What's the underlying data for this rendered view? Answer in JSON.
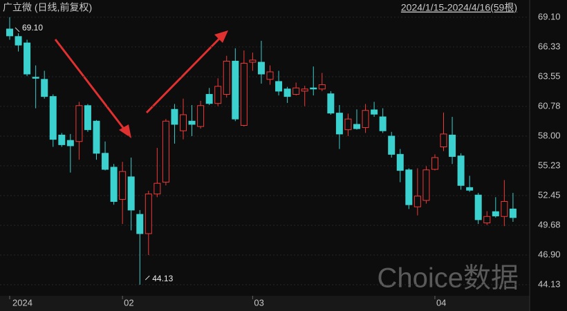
{
  "chart_data": {
    "type": "candlestick",
    "title": "广立微 (日线,前复权)",
    "range_label": "2024/1/15-2024/4/16(59根)",
    "watermark": "Choice数据",
    "categories": [
      "2024",
      null,
      null,
      null,
      null,
      null,
      null,
      null,
      null,
      null,
      null,
      null,
      null,
      "02",
      null,
      null,
      null,
      null,
      null,
      null,
      null,
      null,
      null,
      null,
      null,
      null,
      null,
      null,
      "03",
      null,
      null,
      null,
      null,
      null,
      null,
      null,
      null,
      null,
      null,
      null,
      null,
      null,
      null,
      null,
      null,
      null,
      null,
      null,
      null,
      "04",
      null,
      null,
      null,
      null,
      null,
      null,
      null,
      null,
      null
    ],
    "open": [
      68.0,
      67.3,
      66.7,
      63.5,
      63.3,
      61.7,
      58.1,
      57.6,
      57.5,
      60.85,
      59.4,
      56.4,
      55.1,
      52.1,
      54.2,
      50.7,
      48.9,
      52.6,
      53.7,
      60.5,
      58.5,
      59.4,
      58.9,
      61.9,
      61.05,
      61.9,
      65.0,
      59.0,
      64.9,
      64.9,
      63.3,
      63.1,
      62.4,
      61.9,
      62.2,
      62.5,
      62.4,
      61.95,
      60.15,
      58.6,
      59.1,
      58.8,
      60.45,
      59.8,
      58.0,
      56.3,
      54.85,
      51.4,
      52.0,
      54.9,
      57.0,
      58.1,
      56.15,
      53.2,
      52.5,
      49.9,
      50.95,
      50.5,
      51.2
    ],
    "high": [
      69.1,
      67.6,
      67.0,
      64.6,
      64.1,
      61.9,
      58.3,
      58.2,
      61.2,
      61.0,
      59.5,
      57.5,
      55.4,
      55.6,
      56.0,
      51.1,
      52.9,
      56.9,
      59.6,
      61.0,
      61.5,
      60.9,
      61.3,
      62.5,
      63.4,
      65.5,
      66.2,
      66.0,
      65.8,
      66.9,
      64.6,
      64.1,
      62.6,
      63.0,
      62.7,
      64.5,
      63.9,
      62.2,
      60.9,
      60.1,
      60.5,
      61.0,
      61.2,
      60.6,
      58.4,
      56.8,
      55.0,
      55.0,
      55.2,
      56.3,
      60.2,
      59.8,
      56.4,
      54.3,
      52.7,
      51.0,
      52.3,
      53.9,
      52.7
    ],
    "low": [
      67.0,
      65.9,
      63.6,
      60.6,
      61.5,
      57.0,
      57.0,
      54.6,
      55.8,
      58.4,
      55.8,
      54.8,
      51.6,
      49.8,
      49.2,
      44.13,
      46.9,
      52.3,
      53.4,
      57.3,
      57.7,
      58.0,
      58.7,
      60.9,
      60.8,
      61.6,
      59.4,
      58.9,
      64.1,
      62.9,
      62.8,
      61.8,
      61.1,
      61.8,
      60.8,
      61.8,
      62.2,
      60.0,
      56.8,
      58.0,
      58.6,
      58.3,
      59.8,
      58.3,
      56.0,
      53.7,
      51.2,
      50.6,
      51.7,
      54.8,
      56.6,
      55.4,
      53.0,
      52.8,
      49.8,
      49.7,
      50.4,
      49.6,
      50.0
    ],
    "close": [
      67.36,
      66.5,
      63.8,
      63.4,
      61.7,
      57.7,
      57.2,
      57.1,
      60.85,
      58.6,
      56.4,
      54.9,
      51.9,
      54.7,
      51.1,
      48.9,
      52.6,
      53.6,
      59.4,
      59.1,
      60.0,
      59.1,
      60.85,
      61.05,
      62.65,
      65.0,
      59.6,
      64.8,
      65.1,
      63.8,
      64.0,
      62.2,
      61.7,
      62.5,
      62.4,
      62.4,
      62.8,
      60.15,
      58.2,
      59.6,
      58.7,
      60.4,
      60.05,
      58.5,
      56.3,
      54.8,
      51.6,
      52.4,
      54.85,
      56.0,
      58.2,
      56.1,
      53.4,
      52.95,
      50.2,
      50.5,
      50.55,
      51.9,
      50.4
    ],
    "up_color": "#f03a3a",
    "down_color": "#3ad1cf",
    "high_label": {
      "value": 69.1,
      "label": "69.10"
    },
    "low_label": {
      "value": 44.13,
      "label": "44.13"
    },
    "ylim": [
      43.29,
      69.74
    ],
    "yticks": [
      {
        "value": 69.1,
        "label": "69.10"
      },
      66.33,
      63.55,
      60.78,
      {
        "value": 58.0,
        "label": "58.00"
      },
      55.23,
      52.45,
      49.68,
      {
        "value": 46.9,
        "label": "46.90"
      },
      44.13
    ],
    "grid": true
  }
}
